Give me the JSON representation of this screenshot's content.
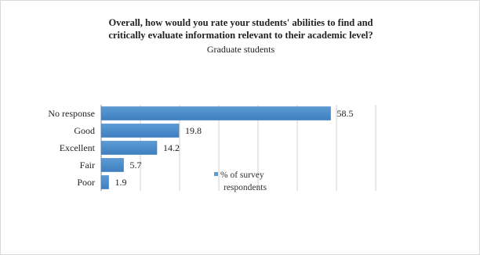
{
  "chart_data": {
    "type": "bar",
    "orientation": "horizontal",
    "title": "Overall, how would you rate your students' abilities to find and critically evaluate information relevant to their academic level?",
    "title_lines": [
      "Overall, how would you rate your students' abilities to find and",
      "critically evaluate information relevant to their academic level?"
    ],
    "subtitle": "Graduate students",
    "categories": [
      "No response",
      "Good",
      "Excellent",
      "Fair",
      "Poor"
    ],
    "series": [
      {
        "name": "% of survey respondents",
        "values": [
          58.5,
          19.8,
          14.2,
          5.7,
          1.9
        ],
        "labels": [
          "58.5",
          "19.8",
          "14.2",
          "5.7",
          "1.9"
        ]
      }
    ],
    "legend_lines": [
      "% of survey",
      "respondents"
    ],
    "xlim": [
      0,
      70
    ],
    "grid": true,
    "legend_position": "right",
    "colors": {
      "bar": "#5b9bd5",
      "bar_dark": "#3f7fc0",
      "grid": "#cfcfcf",
      "axis": "#8c8c8c",
      "text": "#222222"
    }
  }
}
